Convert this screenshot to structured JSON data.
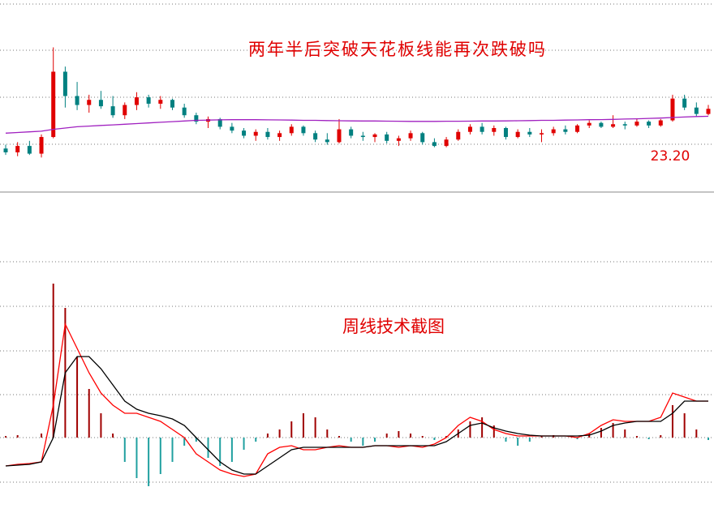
{
  "chart_data": [
    {
      "type": "candlestick",
      "title": "两年半后突破天花板线能再次跌破吗",
      "annotation": "23.20",
      "ylim": [
        20,
        35
      ],
      "up_color": "#e00000",
      "down_color": "#008080",
      "open": [
        23.4,
        23.1,
        23.6,
        23.0,
        24.3,
        29.4,
        27.5,
        26.8,
        27.2,
        26.7,
        26.0,
        26.8,
        27.4,
        26.9,
        27.2,
        26.6,
        26.0,
        25.5,
        25.7,
        25.1,
        24.8,
        24.4,
        24.7,
        24.3,
        24.6,
        25.1,
        24.6,
        24.1,
        23.9,
        24.9,
        24.4,
        24.3,
        24.5,
        24.0,
        24.2,
        24.6,
        23.9,
        23.6,
        24.1,
        24.7,
        25.1,
        24.7,
        25.0,
        24.3,
        24.7,
        24.5,
        24.6,
        24.9,
        24.7,
        25.2,
        25.4,
        25.1,
        25.3,
        25.2,
        25.5,
        25.2,
        25.6,
        27.3,
        26.6,
        26.1
      ],
      "high": [
        23.7,
        23.9,
        24.0,
        24.5,
        31.3,
        29.8,
        28.6,
        27.6,
        27.9,
        27.5,
        27.0,
        27.8,
        27.6,
        27.5,
        27.3,
        26.9,
        26.2,
        25.9,
        25.8,
        25.4,
        25.0,
        24.9,
        25.0,
        24.8,
        25.3,
        25.2,
        24.8,
        24.6,
        25.7,
        25.1,
        24.7,
        24.6,
        24.7,
        24.4,
        24.8,
        24.7,
        24.2,
        24.3,
        24.9,
        25.3,
        25.4,
        25.2,
        25.1,
        24.9,
        25.0,
        24.9,
        25.1,
        25.2,
        25.3,
        25.6,
        25.5,
        26.0,
        25.5,
        25.7,
        25.6,
        25.7,
        27.6,
        27.6,
        27.0,
        26.8
      ],
      "low": [
        22.9,
        22.8,
        22.9,
        22.7,
        24.2,
        26.6,
        26.4,
        26.2,
        26.5,
        25.8,
        25.7,
        26.4,
        26.6,
        26.5,
        26.4,
        25.8,
        25.3,
        25.0,
        24.9,
        24.6,
        24.2,
        24.0,
        24.1,
        24.0,
        24.4,
        24.4,
        23.9,
        23.7,
        23.8,
        24.2,
        24.0,
        23.9,
        23.8,
        23.6,
        24.0,
        23.7,
        23.5,
        23.5,
        24.0,
        24.5,
        24.5,
        24.4,
        24.1,
        24.2,
        24.3,
        23.9,
        24.4,
        24.5,
        24.6,
        25.0,
        25.0,
        25.0,
        24.9,
        25.1,
        25.0,
        25.1,
        25.5,
        26.4,
        25.9,
        26.0
      ],
      "close": [
        23.1,
        23.6,
        23.0,
        24.3,
        29.4,
        27.5,
        26.8,
        27.2,
        26.7,
        26.0,
        26.8,
        27.4,
        26.9,
        27.2,
        26.6,
        26.0,
        25.5,
        25.7,
        25.1,
        24.8,
        24.4,
        24.7,
        24.3,
        24.6,
        25.1,
        24.6,
        24.1,
        23.9,
        24.9,
        24.4,
        24.3,
        24.5,
        24.0,
        24.2,
        24.6,
        23.9,
        23.6,
        24.1,
        24.7,
        25.1,
        24.7,
        25.0,
        24.3,
        24.7,
        24.5,
        24.6,
        24.9,
        24.7,
        25.2,
        25.4,
        25.1,
        25.3,
        25.2,
        25.5,
        25.2,
        25.6,
        27.3,
        26.6,
        26.1,
        26.5
      ],
      "ma": {
        "color": "#a020c0",
        "values": [
          24.6,
          24.65,
          24.7,
          24.75,
          24.9,
          25.0,
          25.1,
          25.15,
          25.2,
          25.25,
          25.3,
          25.35,
          25.4,
          25.45,
          25.5,
          25.55,
          25.6,
          25.62,
          25.64,
          25.65,
          25.65,
          25.65,
          25.64,
          25.63,
          25.62,
          25.6,
          25.6,
          25.58,
          25.57,
          25.56,
          25.55,
          25.55,
          25.54,
          25.53,
          25.52,
          25.52,
          25.52,
          25.53,
          25.53,
          25.54,
          25.55,
          25.55,
          25.56,
          25.57,
          25.58,
          25.6,
          25.6,
          25.62,
          25.63,
          25.65,
          25.66,
          25.68,
          25.7,
          25.72,
          25.75,
          25.78,
          25.82,
          25.86,
          25.9,
          25.92
        ]
      }
    },
    {
      "type": "macd",
      "title": "周线技术截图",
      "ylim": [
        -1,
        3
      ],
      "up_color": "#a00000",
      "down_color": "#20a0a0",
      "histogram": [
        0.02,
        0.03,
        0.0,
        0.05,
        1.9,
        1.6,
        1.0,
        0.6,
        0.3,
        0.05,
        -0.3,
        -0.5,
        -0.6,
        -0.45,
        -0.3,
        -0.1,
        -0.05,
        -0.25,
        -0.35,
        -0.3,
        -0.15,
        -0.05,
        0.05,
        0.1,
        0.2,
        0.3,
        0.25,
        0.1,
        0.02,
        -0.05,
        -0.1,
        -0.05,
        0.05,
        0.08,
        0.05,
        0.02,
        -0.03,
        0.02,
        0.1,
        0.2,
        0.25,
        0.15,
        -0.05,
        -0.1,
        -0.05,
        0.02,
        0.03,
        0.0,
        -0.02,
        0.05,
        0.12,
        0.18,
        0.1,
        0.02,
        -0.02,
        0.03,
        0.4,
        0.3,
        0.1,
        -0.03
      ],
      "series": [
        {
          "color": "#ff0000",
          "values": [
            -0.35,
            -0.33,
            -0.32,
            -0.3,
            0.4,
            1.4,
            1.1,
            0.8,
            0.55,
            0.4,
            0.3,
            0.3,
            0.25,
            0.2,
            0.1,
            0.0,
            -0.2,
            -0.3,
            -0.4,
            -0.45,
            -0.48,
            -0.45,
            -0.2,
            -0.12,
            -0.1,
            -0.15,
            -0.15,
            -0.12,
            -0.1,
            -0.12,
            -0.12,
            -0.1,
            -0.1,
            -0.12,
            -0.1,
            -0.12,
            -0.08,
            0.0,
            0.15,
            0.25,
            0.2,
            0.1,
            0.05,
            0.02,
            0.02,
            0.02,
            0.02,
            0.02,
            0.0,
            0.05,
            0.15,
            0.22,
            0.2,
            0.2,
            0.2,
            0.25,
            0.55,
            0.5,
            0.45,
            0.45
          ]
        },
        {
          "color": "#000000",
          "values": [
            -0.35,
            -0.34,
            -0.33,
            -0.3,
            0.0,
            0.8,
            1.0,
            1.0,
            0.85,
            0.65,
            0.45,
            0.35,
            0.3,
            0.27,
            0.23,
            0.15,
            0.0,
            -0.15,
            -0.3,
            -0.4,
            -0.45,
            -0.45,
            -0.35,
            -0.25,
            -0.15,
            -0.12,
            -0.12,
            -0.12,
            -0.12,
            -0.12,
            -0.12,
            -0.1,
            -0.1,
            -0.1,
            -0.1,
            -0.1,
            -0.1,
            -0.05,
            0.05,
            0.15,
            0.18,
            0.12,
            0.08,
            0.05,
            0.03,
            0.02,
            0.02,
            0.02,
            0.02,
            0.03,
            0.08,
            0.15,
            0.18,
            0.2,
            0.2,
            0.2,
            0.3,
            0.45,
            0.45,
            0.45
          ]
        }
      ]
    }
  ]
}
